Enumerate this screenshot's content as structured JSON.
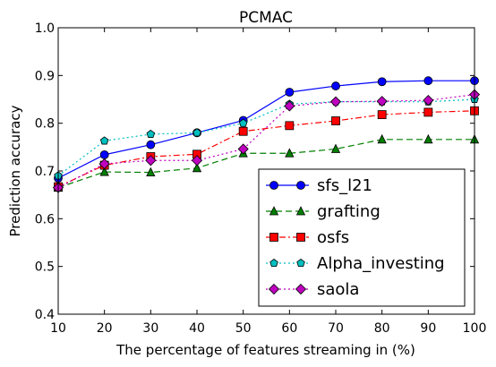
{
  "chart_data": {
    "type": "line",
    "title": "PCMAC",
    "xlabel": "The percentage of features streaming in (%)",
    "ylabel": "Prediction accuracy",
    "xlim": [
      10,
      100
    ],
    "ylim": [
      0.4,
      1.0
    ],
    "xticks": [
      10,
      20,
      30,
      40,
      50,
      60,
      70,
      80,
      90,
      100
    ],
    "yticks": [
      0.4,
      0.5,
      0.6,
      0.7,
      0.8,
      0.9,
      1.0
    ],
    "x": [
      10,
      20,
      30,
      40,
      50,
      60,
      70,
      80,
      90,
      100
    ],
    "legend_position": "lower-right",
    "grid": false,
    "series": [
      {
        "name": "sfs_l21",
        "color": "#0000ff",
        "linestyle": "solid",
        "marker": "circle",
        "values": [
          0.685,
          0.734,
          0.755,
          0.78,
          0.806,
          0.865,
          0.878,
          0.887,
          0.889,
          0.889
        ]
      },
      {
        "name": "grafting",
        "color": "#007f00",
        "linestyle": "dashed",
        "marker": "triangle",
        "values": [
          0.665,
          0.698,
          0.697,
          0.706,
          0.737,
          0.737,
          0.746,
          0.766,
          0.766,
          0.766
        ]
      },
      {
        "name": "osfs",
        "color": "#ff0000",
        "linestyle": "dashdot",
        "marker": "square",
        "values": [
          0.667,
          0.712,
          0.73,
          0.735,
          0.783,
          0.795,
          0.805,
          0.818,
          0.823,
          0.826
        ]
      },
      {
        "name": "Alpha_investing",
        "color": "#00bfbf",
        "linestyle": "dotted",
        "marker": "pentagon",
        "values": [
          0.69,
          0.763,
          0.777,
          0.78,
          0.8,
          0.84,
          0.845,
          0.845,
          0.845,
          0.85
        ]
      },
      {
        "name": "saola",
        "color": "#bf00bf",
        "linestyle": "dotted",
        "marker": "diamond",
        "values": [
          0.665,
          0.715,
          0.722,
          0.722,
          0.746,
          0.836,
          0.845,
          0.846,
          0.848,
          0.86
        ]
      }
    ]
  }
}
